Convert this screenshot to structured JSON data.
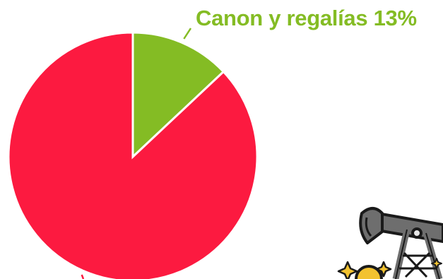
{
  "chart_data": {
    "type": "pie",
    "title": "",
    "slices": [
      {
        "label": "Canon y regalías",
        "value": 13,
        "display": "Canon y regalías 13%",
        "color": "#84bc24"
      },
      {
        "label": "",
        "value": 87,
        "display": "",
        "color": "#fc1a40"
      }
    ],
    "start_angle": "12 o'clock",
    "direction": "clockwise"
  },
  "illustration": {
    "icon": "oil-pumpjack-icon",
    "colors": {
      "frame": "#6e6e6e",
      "outline": "#1a1a1a",
      "light": "#e8e8e8",
      "gold": "#f2c230"
    }
  }
}
